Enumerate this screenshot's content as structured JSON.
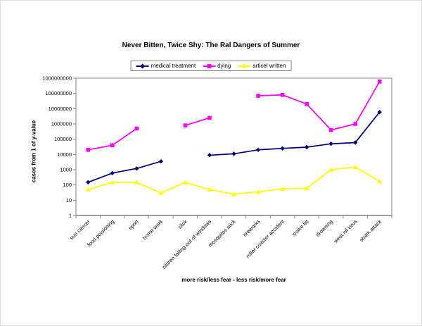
{
  "chart_data": {
    "type": "line",
    "title": "Never Bitten, Twice Shy: The Ral Dangers of Summer",
    "xlabel": "more risk/less fear - less risk/more fear",
    "ylabel": "cases from 1 of y-value",
    "log_scale_y": true,
    "ylim": [
      1,
      1000000000
    ],
    "y_ticks": [
      1,
      10,
      100,
      1000,
      10000,
      100000,
      1000000,
      10000000,
      100000000,
      1000000000
    ],
    "grid": false,
    "legend_position": "top-center",
    "categories": [
      "sun cancer",
      "food poisioning",
      "sport",
      "home work",
      "slick",
      "cildren falling out of windows",
      "mosquitos stick",
      "nreworks",
      "roller coaster accident",
      "snake bit",
      "drowning",
      "west nil virus",
      "shark attack"
    ],
    "series": [
      {
        "name": "medical treatment",
        "color": "#000080",
        "marker": "diamond",
        "values": [
          150,
          600,
          1200,
          3500,
          null,
          9000,
          11000,
          20000,
          25000,
          30000,
          50000,
          60000,
          6000000
        ]
      },
      {
        "name": "dying",
        "color": "#FF00FF",
        "marker": "square",
        "values": [
          20000,
          40000,
          500000,
          null,
          800000,
          2500000,
          null,
          70000000,
          80000000,
          20000000,
          400000,
          1000000,
          600000000
        ]
      },
      {
        "name": "articel written",
        "color": "#FFFF00",
        "marker": "triangle",
        "values": [
          50,
          150,
          150,
          30,
          150,
          50,
          25,
          35,
          55,
          60,
          1000,
          1500,
          170
        ]
      }
    ],
    "axis_color": "#808080",
    "text_color": "#000000"
  }
}
